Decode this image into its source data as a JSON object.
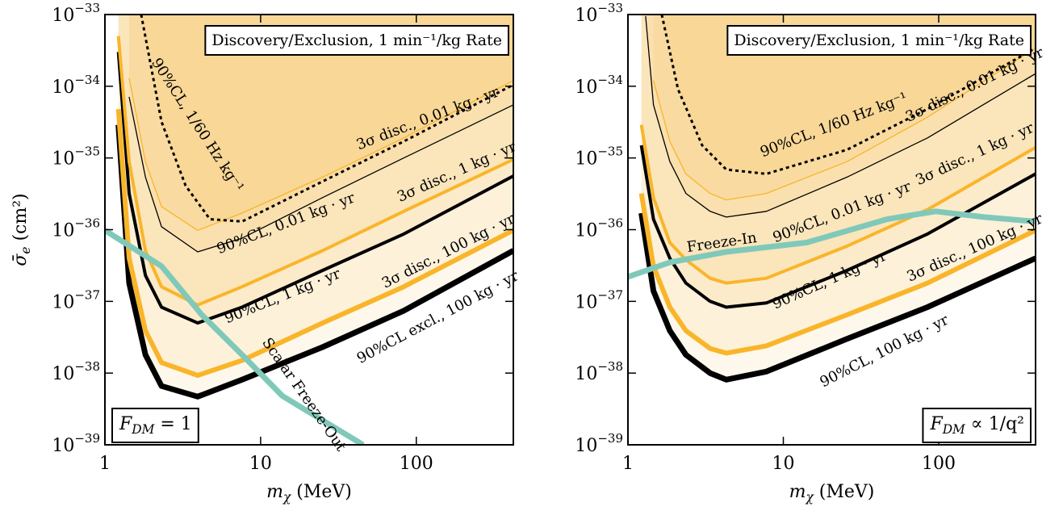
{
  "chart_data": [
    {
      "type": "line",
      "xlog": true,
      "ylog": true,
      "title": "Discovery/Exclusion, 1 min⁻¹/kg Rate",
      "model_label": {
        "symbol": "F",
        "subscript": "DM",
        "text": " = 1"
      },
      "x_label": {
        "symbol": "m",
        "subscript": "χ",
        "text": " (MeV)"
      },
      "y_label": {
        "symbol": "σ̄",
        "subscript": "e",
        "text": " (cm²)"
      },
      "fill_color": "#f9b52a",
      "xlim": [
        1,
        420
      ],
      "xticks": [
        1,
        10,
        100
      ],
      "ylim": [
        1e-39,
        1e-33
      ],
      "yticks": [
        {
          "value": 1e-39,
          "label": "10",
          "exponent": "−39"
        },
        {
          "value": 1e-38,
          "label": "10",
          "exponent": "−38"
        },
        {
          "value": 1e-37,
          "label": "10",
          "exponent": "−37"
        },
        {
          "value": 1e-36,
          "label": "10",
          "exponent": "−36"
        },
        {
          "value": 1e-35,
          "label": "10",
          "exponent": "−35"
        },
        {
          "value": 1e-34,
          "label": "10",
          "exponent": "−34"
        },
        {
          "value": 1e-33,
          "label": "10",
          "exponent": "−33"
        }
      ],
      "series": [
        {
          "name": "90%CL excl., 100 kg · yr",
          "color": "#000000",
          "x": [
            1.22,
            1.43,
            1.82,
            2.31,
            3.94,
            7.6,
            25,
            83,
            420
          ],
          "values": [
            2.9e-35,
            1.8e-37,
            1.8e-38,
            6.6e-39,
            4.7e-39,
            8.1e-39,
            2.3e-38,
            7.4e-38,
            5.1e-37
          ]
        },
        {
          "name": "3σ disc., 100 kg · yr",
          "color": "#f9b52a",
          "x": [
            1.22,
            1.43,
            1.82,
            2.31,
            3.94,
            7.6,
            25,
            83,
            420
          ],
          "values": [
            4.8e-35,
            4e-37,
            3.9e-38,
            1.4e-38,
            9.3e-39,
            1.5e-38,
            5e-38,
            1.6e-37,
            9.8e-37
          ]
        },
        {
          "name": "90%CL, 1 kg · yr",
          "color": "#000000",
          "x": [
            1.22,
            1.43,
            1.82,
            2.31,
            3.94,
            7.6,
            25,
            83,
            420
          ],
          "values": [
            3e-34,
            3.2e-36,
            2.3e-37,
            8.3e-38,
            5e-38,
            8.3e-38,
            2.7e-37,
            8.7e-37,
            5.6e-36
          ]
        },
        {
          "name": "3σ disc., 1 kg · yr",
          "color": "#f9b52a",
          "x": [
            1.22,
            1.43,
            1.82,
            2.31,
            3.94,
            7.6,
            25,
            83,
            420
          ],
          "values": [
            5e-34,
            8.9e-36,
            5.1e-37,
            1.6e-37,
            8.9e-38,
            1.6e-37,
            5.1e-37,
            1.8e-36,
            9.5e-36
          ]
        },
        {
          "name": "90%CL, 0.01 kg · yr",
          "color": "#000000",
          "x": [
            1.43,
            1.82,
            2.31,
            3.94,
            7.6,
            25,
            83,
            420
          ],
          "values": [
            7.1e-35,
            5.4e-36,
            1.1e-36,
            4.9e-37,
            7.6e-37,
            2.8e-36,
            1e-35,
            5.5e-35
          ]
        },
        {
          "name": "3σ disc., 0.01 kg · yr",
          "color": "#f9b52a",
          "x": [
            1.43,
            1.82,
            2.31,
            3.94,
            7.6,
            25,
            83,
            420
          ],
          "values": [
            1.3e-34,
            8.9e-36,
            2.1e-36,
            9.8e-37,
            1.7e-36,
            5.4e-36,
            1.9e-35,
            1.2e-34
          ]
        },
        {
          "name": "90%CL, 1/60 Hz kg⁻¹",
          "color": "#000000",
          "dashed": true,
          "x": [
            1.71,
            2.31,
            3.3,
            4.72,
            7.6,
            25,
            83,
            420
          ],
          "values": [
            1e-33,
            3.2e-35,
            4.1e-36,
            1.4e-36,
            1.3e-36,
            4.7e-36,
            1.7e-35,
            1.05e-34
          ]
        },
        {
          "name": "Scalar Freeze-Out",
          "color": "#80c9ba",
          "x": [
            1,
            2.31,
            4.19,
            7.6,
            13.8,
            45.5
          ],
          "values": [
            9.8e-37,
            3.1e-37,
            6.5e-38,
            1.8e-38,
            4.8e-39,
            1e-39
          ]
        }
      ]
    },
    {
      "type": "line",
      "xlog": true,
      "ylog": true,
      "title": "Discovery/Exclusion, 1 min⁻¹/kg Rate",
      "model_label": {
        "symbol": "F",
        "subscript": "DM",
        "text": " ∝ 1/q²"
      },
      "x_label": {
        "symbol": "m",
        "subscript": "χ",
        "text": " (MeV)"
      },
      "fill_color": "#f9b52a",
      "xlim": [
        1,
        420
      ],
      "xticks": [
        1,
        10,
        100
      ],
      "ylim": [
        1e-39,
        1e-33
      ],
      "yticks": [
        {
          "value": 1e-39,
          "label": "10",
          "exponent": "−39"
        },
        {
          "value": 1e-38,
          "label": "10",
          "exponent": "−38"
        },
        {
          "value": 1e-37,
          "label": "10",
          "exponent": "−37"
        },
        {
          "value": 1e-36,
          "label": "10",
          "exponent": "−36"
        },
        {
          "value": 1e-35,
          "label": "10",
          "exponent": "−35"
        },
        {
          "value": 1e-34,
          "label": "10",
          "exponent": "−34"
        },
        {
          "value": 1e-33,
          "label": "10",
          "exponent": "−33"
        }
      ],
      "series": [
        {
          "name": "90%CL, 100 kg · yr",
          "color": "#000000",
          "x": [
            1.22,
            1.46,
            1.86,
            2.36,
            3.38,
            4.29,
            7.78,
            25.7,
            84.6,
            420
          ],
          "values": [
            1.7e-36,
            1.4e-37,
            3.9e-38,
            1.8e-38,
            1e-38,
            8.1e-39,
            1.05e-38,
            3e-38,
            8.3e-38,
            4e-37
          ]
        },
        {
          "name": "3σ disc., 100 kg · yr",
          "color": "#f9b52a",
          "x": [
            1.22,
            1.46,
            1.86,
            2.36,
            3.38,
            4.29,
            7.78,
            25.7,
            84.6,
            420
          ],
          "values": [
            3.2e-36,
            3.1e-37,
            8.3e-38,
            3.9e-38,
            2.2e-38,
            1.9e-38,
            2.4e-38,
            6.5e-38,
            1.8e-37,
            9.8e-37
          ]
        },
        {
          "name": "90%CL, 1 kg · yr",
          "color": "#000000",
          "x": [
            1.22,
            1.46,
            1.86,
            2.36,
            3.38,
            4.29,
            7.78,
            25.7,
            84.6,
            420
          ],
          "values": [
            1.5e-35,
            1.4e-36,
            4e-37,
            1.8e-37,
            1e-37,
            8.3e-38,
            9.5e-38,
            2.7e-37,
            8.7e-37,
            6e-36
          ]
        },
        {
          "name": "3σ disc., 1 kg · yr",
          "color": "#f9b52a",
          "x": [
            1.22,
            1.46,
            1.86,
            2.36,
            3.38,
            4.29,
            7.78,
            25.7,
            84.6,
            420
          ],
          "values": [
            2.9e-35,
            2.8e-36,
            6.6e-37,
            3.8e-37,
            2.1e-37,
            1.8e-37,
            2.1e-37,
            5.9e-37,
            1.9e-36,
            1.4e-35
          ]
        },
        {
          "name": "90%CL, 0.01 kg · yr",
          "color": "#000000",
          "x": [
            1.3,
            1.46,
            1.86,
            2.36,
            3.38,
            4.29,
            7.78,
            25.7,
            84.6,
            420
          ],
          "values": [
            9.5e-34,
            5.5e-35,
            8.9e-36,
            3.2e-36,
            1.8e-36,
            1.5e-36,
            1.8e-36,
            5.4e-36,
            1.9e-35,
            1.5e-34
          ]
        },
        {
          "name": "3σ disc., 0.01 kg · yr",
          "color": "#f9b52a",
          "x": [
            1.46,
            1.86,
            2.36,
            3.38,
            4.29,
            7.78,
            25.7,
            84.6,
            420
          ],
          "values": [
            1.2e-34,
            1.7e-35,
            6e-36,
            3.2e-36,
            2.6e-36,
            3.2e-36,
            8.9e-36,
            3.7e-35,
            3.4e-34
          ]
        },
        {
          "name": "90%CL, 1/60 Hz kg⁻¹",
          "color": "#000000",
          "dashed": true,
          "x": [
            1.65,
            2.1,
            3.0,
            4.29,
            7.78,
            25.7,
            84.6,
            420
          ],
          "values": [
            1e-33,
            9.1e-35,
            1.5e-35,
            6.9e-36,
            6e-36,
            1.3e-35,
            4.8e-35,
            3.4e-34
          ]
        },
        {
          "name": "Freeze-In",
          "color": "#80c9ba",
          "x": [
            1,
            1.86,
            4.29,
            14.1,
            46.6,
            95.3,
            195,
            420
          ],
          "values": [
            2.2e-37,
            3.5e-37,
            4.9e-37,
            6.6e-37,
            1.4e-36,
            1.8e-36,
            1.5e-36,
            1.3e-36
          ]
        }
      ]
    }
  ]
}
